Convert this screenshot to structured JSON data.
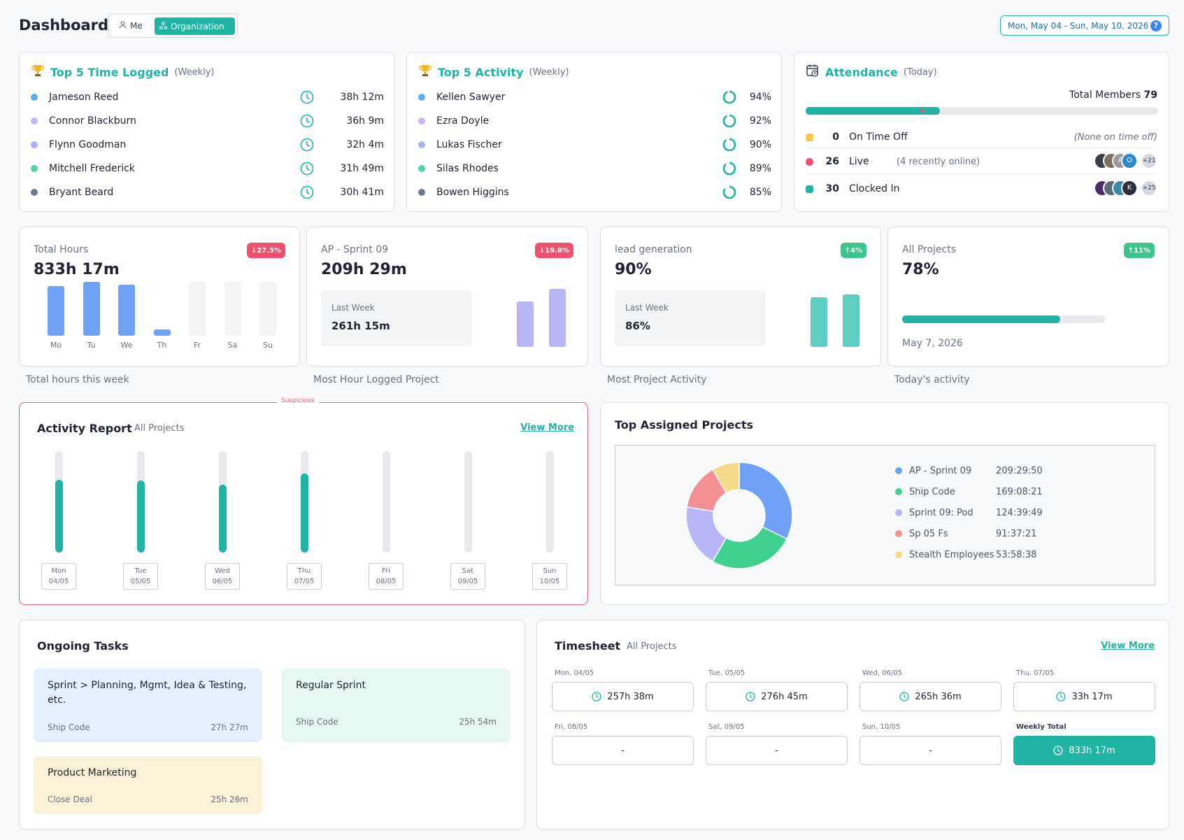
{
  "header": {
    "title": "Dashboard",
    "toggle_me": "Me",
    "toggle_org": "Organization",
    "date_range": "Mon, May 04 - Sun, May 10, 2026",
    "help": "?"
  },
  "top_time": {
    "title": "Top 5 Time Logged",
    "subtitle": "(Weekly)",
    "rows": [
      {
        "name": "Jameson Reed",
        "value": "38h 12m",
        "color": "#5aaef0"
      },
      {
        "name": "Connor Blackburn",
        "value": "36h 9m",
        "color": "#c9b3f5"
      },
      {
        "name": "Flynn Goodman",
        "value": "32h 4m",
        "color": "#a9b3f0"
      },
      {
        "name": "Mitchell Frederick",
        "value": "31h 49m",
        "color": "#4fd6a0"
      },
      {
        "name": "Bryant Beard",
        "value": "30h 41m",
        "color": "#6b7a90"
      }
    ]
  },
  "top_activity": {
    "title": "Top 5 Activity",
    "subtitle": "(Weekly)",
    "rows": [
      {
        "name": "Kellen Sawyer",
        "value": "94%",
        "pct": 94,
        "color": "#5aaef0"
      },
      {
        "name": "Ezra Doyle",
        "value": "92%",
        "pct": 92,
        "color": "#c9b3f5"
      },
      {
        "name": "Lukas Fischer",
        "value": "90%",
        "pct": 90,
        "color": "#a9b3f0"
      },
      {
        "name": "Silas Rhodes",
        "value": "89%",
        "pct": 89,
        "color": "#4fd6a0"
      },
      {
        "name": "Bowen Higgins",
        "value": "85%",
        "pct": 85,
        "color": "#6b7a90"
      }
    ]
  },
  "attendance": {
    "title": "Attendance",
    "subtitle": "(Today)",
    "total_label": "Total Members",
    "total_value": "79",
    "progress": 0.38,
    "rows": [
      {
        "count": "0",
        "label": "On Time Off",
        "note": "(None on time off)",
        "color": "#f2c94c"
      },
      {
        "count": "26",
        "label": "Live",
        "note": "(4 recently online)",
        "color": "#f0506e",
        "more": "+21"
      },
      {
        "count": "30",
        "label": "Clocked In",
        "note": "",
        "color": "#1fb5a2",
        "more": "+25"
      }
    ]
  },
  "stats": {
    "total_hours": {
      "label": "Total Hours",
      "value": "833h 17m",
      "badge": "↓27.5%",
      "caption": "Total hours this week",
      "days": [
        "Mo",
        "Tu",
        "We",
        "Th",
        "Fr",
        "Sa",
        "Su"
      ],
      "values": [
        0.92,
        1.0,
        0.95,
        0.1,
        0,
        0,
        0
      ]
    },
    "sprint": {
      "label": "AP - Sprint 09",
      "value": "209h 29m",
      "badge": "↓19.8%",
      "lastweek_label": "Last Week",
      "lastweek_value": "261h 15m",
      "caption": "Most Hour Logged Project",
      "bars": [
        0.78,
        1.0
      ]
    },
    "lead": {
      "label": "lead generation",
      "value": "90%",
      "badge": "↑4%",
      "lastweek_label": "Last Week",
      "lastweek_value": "86%",
      "caption": "Most Project Activity",
      "bars": [
        0.86,
        0.9
      ]
    },
    "all_projects": {
      "label": "All Projects",
      "value": "78%",
      "badge": "↑11%",
      "progress": 0.78,
      "date": "May 7, 2026",
      "caption": "Today's activity"
    }
  },
  "activity_report": {
    "title": "Activity Report",
    "subtitle": "All Projects",
    "view_more": "View More",
    "flag": "Suspicious",
    "days": [
      {
        "day": "Mon",
        "date": "04/05",
        "value": 0.72
      },
      {
        "day": "Tue",
        "date": "05/05",
        "value": 0.71
      },
      {
        "day": "Wed",
        "date": "06/05",
        "value": 0.67
      },
      {
        "day": "Thu",
        "date": "07/05",
        "value": 0.78
      },
      {
        "day": "Fri",
        "date": "08/05",
        "value": 0
      },
      {
        "day": "Sat",
        "date": "09/05",
        "value": 0
      },
      {
        "day": "Sun",
        "date": "10/05",
        "value": 0
      }
    ]
  },
  "top_projects": {
    "title": "Top Assigned Projects",
    "items": [
      {
        "name": "AP - Sprint 09",
        "time": "209:29:50",
        "hours": 209.5,
        "color": "#6fa2f7"
      },
      {
        "name": "Ship Code",
        "time": "169:08:21",
        "hours": 169.1,
        "color": "#3fcf8e"
      },
      {
        "name": "Sprint 09: Pod",
        "time": "124:39:49",
        "hours": 124.7,
        "color": "#b9b6f7"
      },
      {
        "name": "Sp 05 Fs",
        "time": "91:37:21",
        "hours": 91.6,
        "color": "#f28f95"
      },
      {
        "name": "Stealth Employees",
        "time": "53:58:38",
        "hours": 54.0,
        "color": "#f7d98a"
      }
    ]
  },
  "ongoing_tasks": {
    "title": "Ongoing Tasks",
    "tasks": [
      {
        "name": "Sprint > Planning, Mgmt, Idea & Testing, etc.",
        "project": "Ship Code",
        "duration": "27h 27m",
        "bg": "#e6effd"
      },
      {
        "name": "Regular Sprint",
        "project": "Ship Code",
        "duration": "25h 54m",
        "bg": "#e6f7f2"
      },
      {
        "name": "Product Marketing",
        "project": "Close Deal",
        "duration": "25h 26m",
        "bg": "#fbf1d8"
      }
    ]
  },
  "timesheet": {
    "title": "Timesheet",
    "subtitle": "All Projects",
    "view_more": "View More",
    "days": [
      {
        "label": "Mon, 04/05",
        "value": "257h 38m"
      },
      {
        "label": "Tue, 05/05",
        "value": "276h 45m"
      },
      {
        "label": "Wed, 06/05",
        "value": "265h 36m"
      },
      {
        "label": "Thu, 07/05",
        "value": "33h 17m"
      },
      {
        "label": "Fri, 08/05",
        "value": "-"
      },
      {
        "label": "Sat, 09/05",
        "value": "-"
      },
      {
        "label": "Sun, 10/05",
        "value": "-"
      }
    ],
    "total_label": "Weekly Total",
    "total_value": "833h 17m"
  }
}
